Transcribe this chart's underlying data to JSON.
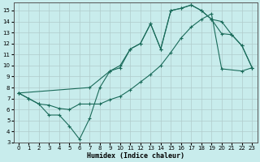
{
  "xlabel": "Humidex (Indice chaleur)",
  "bg_color": "#c8ecec",
  "grid_color": "#b0cccc",
  "line_color": "#1a6b5a",
  "xlim": [
    -0.5,
    23.5
  ],
  "ylim": [
    3,
    15.7
  ],
  "xticks": [
    0,
    1,
    2,
    3,
    4,
    5,
    6,
    7,
    8,
    9,
    10,
    11,
    12,
    13,
    14,
    15,
    16,
    17,
    18,
    19,
    20,
    21,
    22,
    23
  ],
  "yticks": [
    3,
    4,
    5,
    6,
    7,
    8,
    9,
    10,
    11,
    12,
    13,
    14,
    15
  ],
  "line1_x": [
    0,
    1,
    2,
    3,
    4,
    5,
    6,
    7,
    8,
    9,
    10,
    11,
    12,
    13,
    14,
    15,
    16,
    17,
    18,
    19,
    20,
    21,
    22,
    23
  ],
  "line1_y": [
    7.5,
    7.0,
    6.5,
    5.5,
    5.5,
    4.5,
    3.3,
    5.2,
    8.0,
    9.5,
    9.8,
    11.5,
    12.0,
    13.8,
    11.5,
    15.0,
    15.2,
    15.5,
    15.0,
    14.2,
    12.9,
    12.8,
    11.8,
    9.8
  ],
  "line2_x": [
    0,
    1,
    2,
    3,
    4,
    5,
    6,
    7,
    8,
    9,
    10,
    11,
    12,
    13,
    14,
    15,
    16,
    17,
    18,
    19,
    20,
    22,
    23
  ],
  "line2_y": [
    7.5,
    7.0,
    6.5,
    6.4,
    6.1,
    6.0,
    6.5,
    6.5,
    6.5,
    6.9,
    7.2,
    7.8,
    8.5,
    9.2,
    10.0,
    11.2,
    12.5,
    13.5,
    14.2,
    14.7,
    9.7,
    9.5,
    9.8
  ],
  "line3_x": [
    0,
    7,
    9,
    10,
    11,
    12,
    13,
    14,
    15,
    16,
    17,
    18,
    19,
    20,
    21,
    22,
    23
  ],
  "line3_y": [
    7.5,
    8.0,
    9.5,
    10.0,
    11.5,
    12.0,
    13.8,
    11.5,
    15.0,
    15.2,
    15.5,
    15.0,
    14.2,
    14.0,
    12.8,
    11.8,
    9.8
  ]
}
